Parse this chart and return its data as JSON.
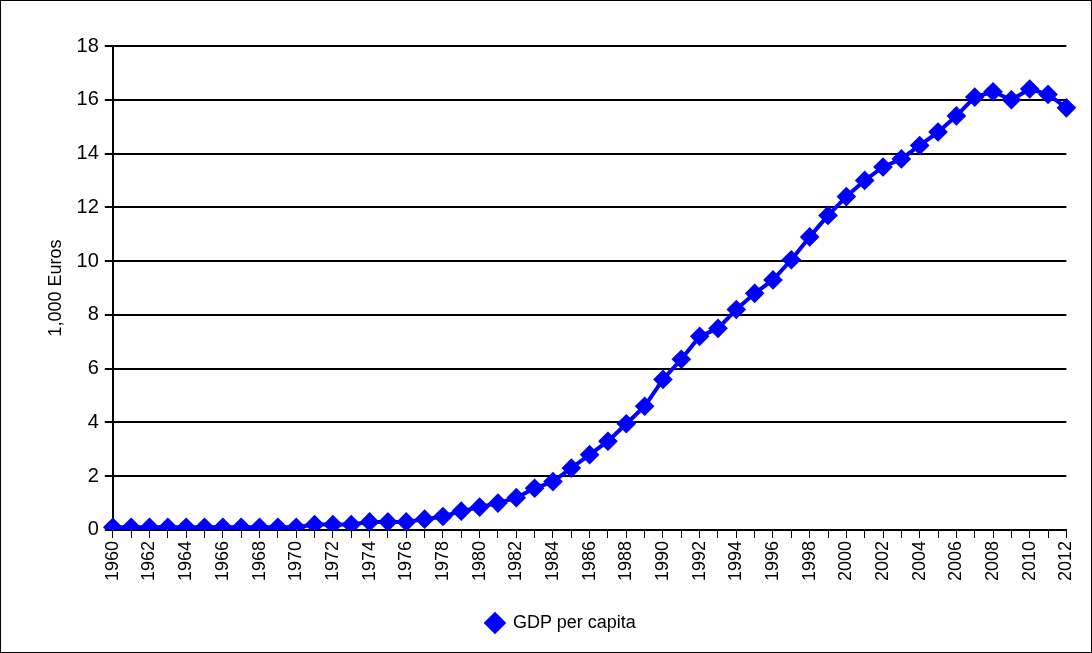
{
  "chart_data": {
    "type": "line",
    "ylabel": "1,000 Euros",
    "categories": [
      "1960",
      null,
      "1962",
      null,
      "1964",
      null,
      "1966",
      null,
      "1968",
      null,
      "1970",
      null,
      "1972",
      null,
      "1974",
      null,
      "1976",
      null,
      "1978",
      null,
      "1980",
      null,
      "1982",
      null,
      "1984",
      null,
      "1986",
      null,
      "1988",
      null,
      "1990",
      null,
      "1992",
      null,
      "1994",
      null,
      "1996",
      null,
      "1998",
      null,
      "2000",
      null,
      "2002",
      null,
      "2004",
      null,
      "2006",
      null,
      "2008",
      null,
      "2010",
      null,
      "2012"
    ],
    "series": [
      {
        "name": "GDP per capita",
        "color": "#0000ff",
        "values": [
          0.1,
          0.1,
          0.1,
          0.1,
          0.1,
          0.1,
          0.1,
          0.1,
          0.1,
          0.1,
          0.1,
          0.2,
          0.2,
          0.2,
          0.3,
          0.3,
          0.3,
          0.4,
          0.5,
          0.7,
          0.85,
          1.0,
          1.2,
          1.55,
          1.8,
          2.3,
          2.8,
          3.3,
          3.95,
          4.6,
          5.6,
          6.35,
          7.2,
          7.5,
          8.2,
          8.8,
          9.3,
          10.05,
          10.9,
          11.7,
          12.4,
          13.0,
          13.5,
          13.8,
          14.3,
          14.8,
          15.4,
          16.1,
          16.3,
          16.0,
          16.4,
          16.2,
          15.7
        ]
      }
    ],
    "ylim": [
      0,
      18
    ],
    "yticks": [
      0,
      2,
      4,
      6,
      8,
      10,
      12,
      14,
      16,
      18
    ],
    "grid": "y",
    "legend": "bottom",
    "marker": "diamond",
    "line_style": "solid"
  }
}
